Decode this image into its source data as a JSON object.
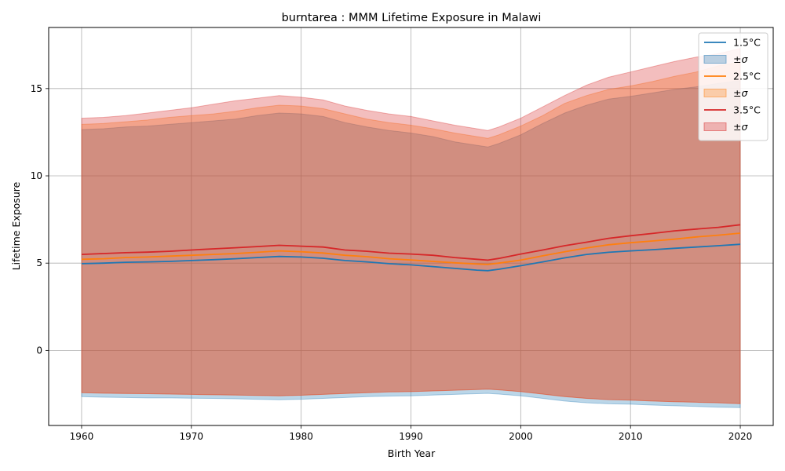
{
  "chart_data": {
    "type": "area",
    "title": "burntarea : MMM Lifetime Exposure in Malawi",
    "xlabel": "Birth Year",
    "ylabel": "Lifetime Exposure",
    "xlim": [
      1957,
      2023
    ],
    "ylim": [
      -4.3,
      18.5
    ],
    "xticks": [
      1960,
      1970,
      1980,
      1990,
      2000,
      2010,
      2020
    ],
    "yticks": [
      0,
      5,
      10,
      15
    ],
    "grid": true,
    "legend_position": "top-right",
    "x": [
      1960,
      1962,
      1964,
      1966,
      1968,
      1970,
      1972,
      1974,
      1976,
      1978,
      1980,
      1982,
      1984,
      1986,
      1988,
      1990,
      1992,
      1994,
      1996,
      1997,
      1998,
      2000,
      2002,
      2004,
      2006,
      2008,
      2010,
      2012,
      2014,
      2016,
      2018,
      2020
    ],
    "series": [
      {
        "name": "1.5°C",
        "band_label": "±σ",
        "color": "#1f77b4",
        "mean": [
          4.97,
          5.0,
          5.05,
          5.07,
          5.1,
          5.15,
          5.2,
          5.25,
          5.32,
          5.38,
          5.35,
          5.28,
          5.15,
          5.07,
          4.97,
          4.9,
          4.8,
          4.7,
          4.6,
          4.57,
          4.65,
          4.85,
          5.07,
          5.3,
          5.5,
          5.62,
          5.7,
          5.77,
          5.85,
          5.92,
          6.0,
          6.08
        ],
        "upper": [
          12.65,
          12.7,
          12.8,
          12.85,
          12.95,
          13.05,
          13.15,
          13.25,
          13.45,
          13.6,
          13.55,
          13.4,
          13.05,
          12.8,
          12.6,
          12.45,
          12.25,
          11.95,
          11.75,
          11.65,
          11.85,
          12.35,
          13.0,
          13.6,
          14.05,
          14.4,
          14.55,
          14.75,
          14.95,
          15.1,
          15.3,
          15.45
        ],
        "lower": [
          -2.65,
          -2.68,
          -2.7,
          -2.72,
          -2.72,
          -2.74,
          -2.75,
          -2.77,
          -2.8,
          -2.83,
          -2.8,
          -2.75,
          -2.7,
          -2.65,
          -2.62,
          -2.6,
          -2.56,
          -2.52,
          -2.48,
          -2.46,
          -2.5,
          -2.6,
          -2.75,
          -2.9,
          -3.0,
          -3.06,
          -3.08,
          -3.13,
          -3.17,
          -3.21,
          -3.25,
          -3.28
        ]
      },
      {
        "name": "2.5°C",
        "band_label": "±σ",
        "color": "#ff7f0e",
        "mean": [
          5.22,
          5.25,
          5.32,
          5.35,
          5.4,
          5.45,
          5.5,
          5.55,
          5.62,
          5.7,
          5.65,
          5.58,
          5.45,
          5.37,
          5.25,
          5.18,
          5.1,
          5.02,
          4.95,
          4.93,
          5.0,
          5.17,
          5.42,
          5.65,
          5.87,
          6.05,
          6.17,
          6.27,
          6.37,
          6.5,
          6.6,
          6.72
        ],
        "upper": [
          12.95,
          13.0,
          13.1,
          13.2,
          13.35,
          13.45,
          13.55,
          13.7,
          13.9,
          14.05,
          14.0,
          13.85,
          13.55,
          13.25,
          13.05,
          12.9,
          12.7,
          12.45,
          12.25,
          12.15,
          12.35,
          12.85,
          13.45,
          14.15,
          14.6,
          14.95,
          15.15,
          15.4,
          15.7,
          15.95,
          16.3,
          16.5
        ],
        "lower": [
          -2.42,
          -2.45,
          -2.47,
          -2.48,
          -2.5,
          -2.52,
          -2.54,
          -2.56,
          -2.58,
          -2.6,
          -2.57,
          -2.52,
          -2.47,
          -2.42,
          -2.38,
          -2.36,
          -2.32,
          -2.28,
          -2.24,
          -2.22,
          -2.26,
          -2.36,
          -2.5,
          -2.65,
          -2.75,
          -2.82,
          -2.85,
          -2.9,
          -2.94,
          -2.97,
          -3.0,
          -3.05
        ]
      },
      {
        "name": "3.5°C",
        "band_label": "±σ",
        "color": "#d62728",
        "mean": [
          5.5,
          5.55,
          5.6,
          5.63,
          5.68,
          5.75,
          5.82,
          5.88,
          5.95,
          6.02,
          5.97,
          5.92,
          5.75,
          5.68,
          5.57,
          5.52,
          5.45,
          5.32,
          5.22,
          5.17,
          5.27,
          5.52,
          5.75,
          6.0,
          6.2,
          6.42,
          6.57,
          6.7,
          6.85,
          6.95,
          7.05,
          7.2
        ],
        "upper": [
          13.3,
          13.35,
          13.45,
          13.6,
          13.75,
          13.9,
          14.1,
          14.3,
          14.45,
          14.6,
          14.5,
          14.35,
          14.0,
          13.75,
          13.55,
          13.4,
          13.15,
          12.9,
          12.7,
          12.6,
          12.8,
          13.3,
          13.95,
          14.6,
          15.2,
          15.65,
          15.95,
          16.25,
          16.55,
          16.8,
          17.0,
          17.3
        ],
        "lower": [
          -2.42,
          -2.45,
          -2.47,
          -2.48,
          -2.5,
          -2.52,
          -2.54,
          -2.56,
          -2.58,
          -2.6,
          -2.57,
          -2.52,
          -2.47,
          -2.42,
          -2.38,
          -2.36,
          -2.32,
          -2.28,
          -2.24,
          -2.22,
          -2.26,
          -2.36,
          -2.5,
          -2.65,
          -2.75,
          -2.82,
          -2.85,
          -2.9,
          -2.94,
          -2.97,
          -3.0,
          -3.05
        ]
      }
    ]
  }
}
